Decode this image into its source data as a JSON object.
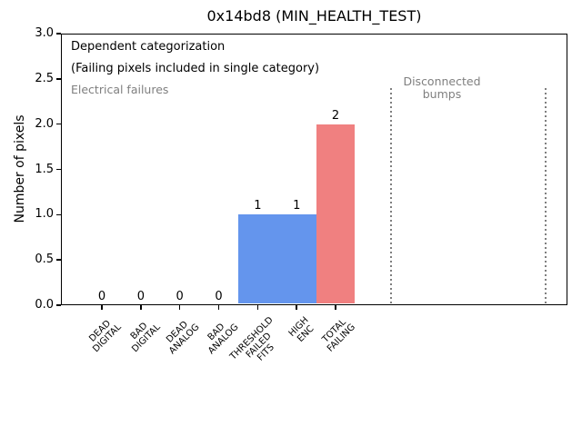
{
  "chart_data": {
    "type": "bar",
    "title": "0x14bd8 (MIN_HEALTH_TEST)",
    "xlabel": "",
    "ylabel": "Number of pixels",
    "ylim": [
      0.0,
      3.0
    ],
    "ytick_step": 0.5,
    "ytick_labels": [
      "0.0",
      "0.5",
      "1.0",
      "1.5",
      "2.0",
      "2.5",
      "3.0"
    ],
    "grid": false,
    "legend": null,
    "xtick_rotation_deg": 45,
    "categories": [
      [
        "DEAD",
        "DIGITAL"
      ],
      [
        "BAD",
        "DIGITAL"
      ],
      [
        "DEAD",
        "ANALOG"
      ],
      [
        "BAD",
        "ANALOG"
      ],
      [
        "THRESHOLD",
        "FAILED",
        "FITS"
      ],
      [
        "HIGH",
        "ENC"
      ],
      [
        "TOTAL",
        "FAILING"
      ]
    ],
    "values": [
      0,
      0,
      0,
      0,
      1,
      1,
      2
    ],
    "bar_value_labels": [
      "0",
      "0",
      "0",
      "0",
      "1",
      "1",
      "2"
    ],
    "bar_colors": [
      "#6495ed",
      "#6495ed",
      "#6495ed",
      "#6495ed",
      "#6495ed",
      "#6495ed",
      "#f08080"
    ],
    "bar_width": 1.0,
    "xlim": [
      -1.05,
      11.95
    ],
    "vlines": [
      {
        "x": 7.43,
        "ymax": 2.4,
        "style": "dotted",
        "color": "#7f7f7f"
      },
      {
        "x": 11.4,
        "ymax": 2.4,
        "style": "dotted",
        "color": "#7f7f7f"
      }
    ],
    "annotations": [
      {
        "id": "dependent",
        "text": "Dependent categorization",
        "color": "#000000"
      },
      {
        "id": "failing",
        "text": "(Failing pixels included in single category)",
        "color": "#000000"
      },
      {
        "id": "electrical",
        "text": "Electrical failures",
        "color": "#7f7f7f"
      },
      {
        "id": "disconnected",
        "text": "Disconnected\nbumps",
        "color": "#7f7f7f"
      }
    ],
    "colors": {
      "bar_blue": "#6495ed",
      "bar_red": "#f08080",
      "annotation_gray": "#7f7f7f",
      "axis": "#000000",
      "background": "#ffffff"
    }
  }
}
